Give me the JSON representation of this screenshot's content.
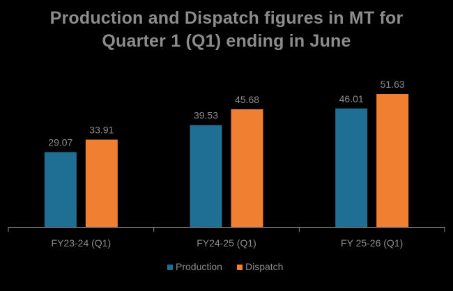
{
  "chart_data": {
    "type": "bar",
    "title_lines": [
      "Production and Dispatch figures in MT for",
      "Quarter 1 (Q1) ending in June"
    ],
    "categories": [
      "FY23-24 (Q1)",
      "FY24-25 (Q1)",
      "FY 25-26 (Q1)"
    ],
    "series": [
      {
        "name": "Production",
        "values": [
          29.07,
          39.53,
          46.01
        ],
        "color": "#1f6f94"
      },
      {
        "name": "Dispatch",
        "values": [
          33.91,
          45.68,
          51.63
        ],
        "color": "#f07f32"
      }
    ],
    "data_labels": true,
    "ylim": [
      0,
      60
    ],
    "grid": false,
    "legend_position": "bottom",
    "axis_color": "#8c8c8c",
    "label_color": "#8c8c8c",
    "background": "#000000"
  }
}
